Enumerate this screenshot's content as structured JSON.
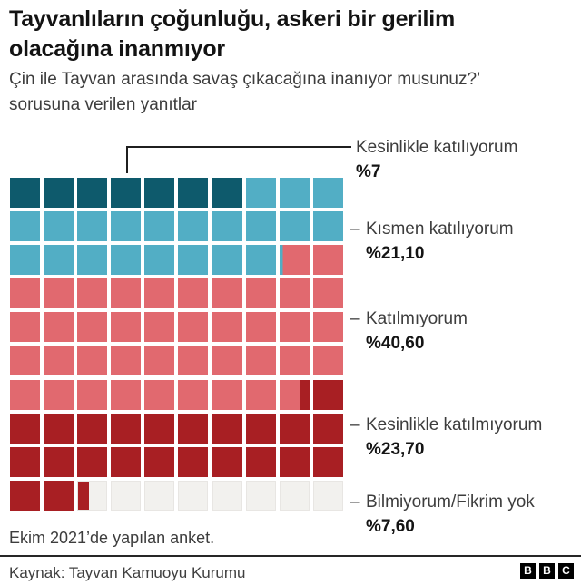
{
  "header": {
    "title_lines": [
      "Tayvanlıların çoğunluğu, askeri bir gerilim",
      "olacağına inanmıyor"
    ],
    "subtitle_lines": [
      "Çin ile Tayvan arasında savaş çıkacağına inanıyor musunuz?’",
      "sorusuna verilen yanıtlar"
    ]
  },
  "chart_data": {
    "type": "waffle",
    "unit": "percent",
    "grid": {
      "rows": 10,
      "cols": 10,
      "fill_order": "left-to-right, top-to-bottom"
    },
    "categories": [
      {
        "label": "Kesinlikle katılıyorum",
        "value": 7,
        "value_label": "%7",
        "color": "#0e5a6c"
      },
      {
        "label": "Kısmen katılıyorum",
        "value": 21.1,
        "value_label": "%21,10",
        "color": "#52aec5"
      },
      {
        "label": "Katılmıyorum",
        "value": 40.6,
        "value_label": "%40,60",
        "color": "#e1696f"
      },
      {
        "label": "Kesinlikle katılmıyorum",
        "value": 23.7,
        "value_label": "%23,70",
        "color": "#a81f23"
      },
      {
        "label": "Bilmiyorum/Fikrim yok",
        "value": 7.6,
        "value_label": "%7,60",
        "color": "#f2f1ee"
      }
    ],
    "tick": "–",
    "annotation_leader_target": "Kesinlikle katılıyorum"
  },
  "footer": {
    "note": "Ekim 2021’de yapılan anket.",
    "source": "Kaynak: Tayvan Kamuoyu Kurumu",
    "logo_letters": [
      "B",
      "B",
      "C"
    ]
  }
}
